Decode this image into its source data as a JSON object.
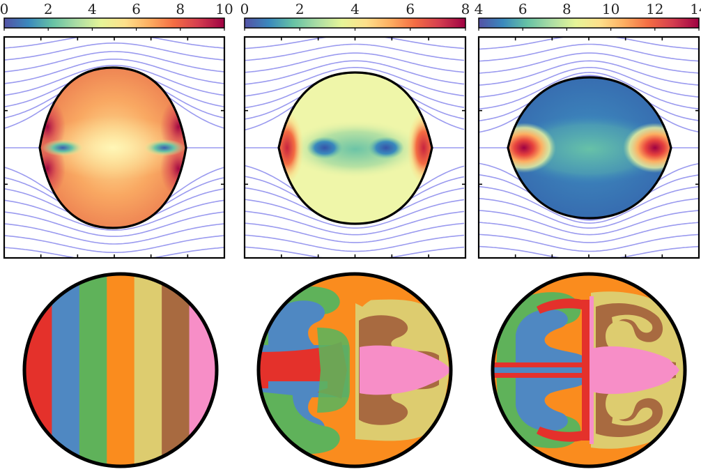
{
  "colorbars": [
    {
      "ticks": [
        "0",
        "2",
        "4",
        "6",
        "8",
        "10"
      ]
    },
    {
      "ticks": [
        "0",
        "2",
        "4",
        "6",
        "8"
      ]
    },
    {
      "ticks": [
        "4",
        "6",
        "8",
        "10",
        "12",
        "14"
      ]
    }
  ],
  "stripe_colors": [
    "#e4312b",
    "#4f88c2",
    "#5fb25a",
    "#fa8c1e",
    "#ddcc6f",
    "#a86a40",
    "#f78ec7"
  ],
  "streamline_color": "#9a9aef",
  "spectral_stops": [
    "#5452a6",
    "#3a89bd",
    "#66c2a5",
    "#abdda4",
    "#e6f598",
    "#fee08b",
    "#fdae61",
    "#f46d43",
    "#d53e4f",
    "#9e0142"
  ]
}
